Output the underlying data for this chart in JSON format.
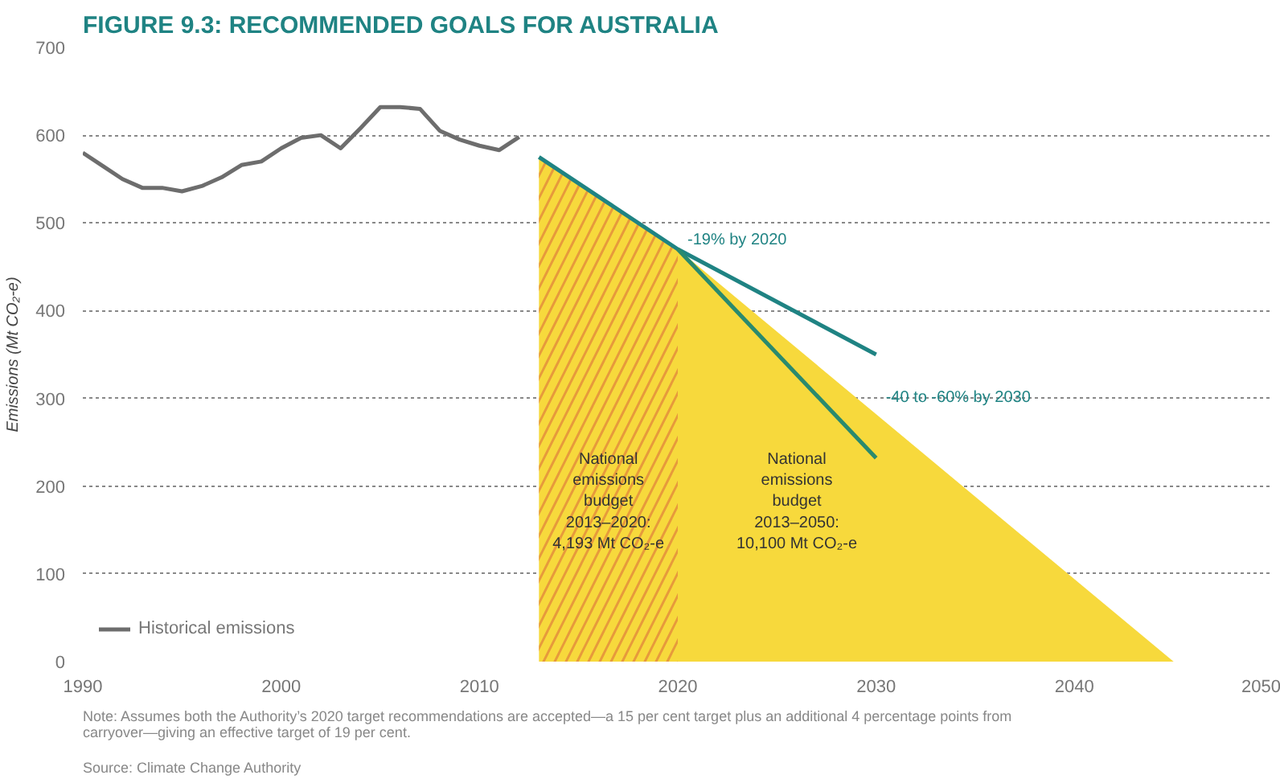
{
  "chart_data": {
    "type": "line",
    "title": "FIGURE 9.3: RECOMMENDED GOALS FOR AUSTRALIA",
    "ylabel": "Emissions (Mt CO₂-e)",
    "xlim": [
      1990,
      2050
    ],
    "xticks": [
      1990,
      2000,
      2010,
      2020,
      2030,
      2040,
      2050
    ],
    "ylim": [
      0,
      700
    ],
    "yticks": [
      0,
      100,
      200,
      300,
      400,
      500,
      600,
      700
    ],
    "grid": "y",
    "legend": "bottom left",
    "series": [
      {
        "type": "area",
        "color": "#f7d93c",
        "x": [
          2013,
          2020,
          2045
        ],
        "values": [
          575,
          470,
          0
        ]
      },
      {
        "type": "area",
        "color": "#e79a3b",
        "x": [
          2013,
          2020
        ],
        "values": [
          575,
          470
        ]
      },
      {
        "name": "Historical emissions",
        "color": "#6d6d6d",
        "x": [
          1990,
          1991,
          1992,
          1993,
          1994,
          1995,
          1996,
          1997,
          1998,
          1999,
          2000,
          2001,
          2002,
          2003,
          2004,
          2005,
          2006,
          2007,
          2008,
          2009,
          2010,
          2011,
          2012
        ],
        "values": [
          580,
          565,
          550,
          540,
          540,
          536,
          542,
          552,
          566,
          570,
          585,
          597,
          600,
          585,
          608,
          632,
          632,
          630,
          605,
          595,
          588,
          583,
          598
        ]
      },
      {
        "color": "#1f8383",
        "x": [
          2013,
          2020,
          2030
        ],
        "values": [
          575,
          470,
          350
        ]
      },
      {
        "color": "#2a8a6e",
        "x": [
          2020,
          2030
        ],
        "values": [
          470,
          232
        ]
      }
    ],
    "annotations": [
      {
        "text": "-19% by 2020",
        "x": 2020,
        "y": 470
      },
      {
        "text": "-40 to -60% by 2030",
        "x": 2030,
        "y": 290
      },
      "National\nemissions\nbudget\n2013–2020:\n4,193 Mt CO₂-e",
      "National\nemissions\nbudget\n2013–2050:\n10,100 Mt CO₂-e",
      "Note: Assumes both the Authority’s 2020 target recommendations are accepted—a 15 per cent target plus an additional 4 percentage points from carryover—giving an effective target of 19 per cent.",
      "Source: Climate Change Authority"
    ]
  }
}
